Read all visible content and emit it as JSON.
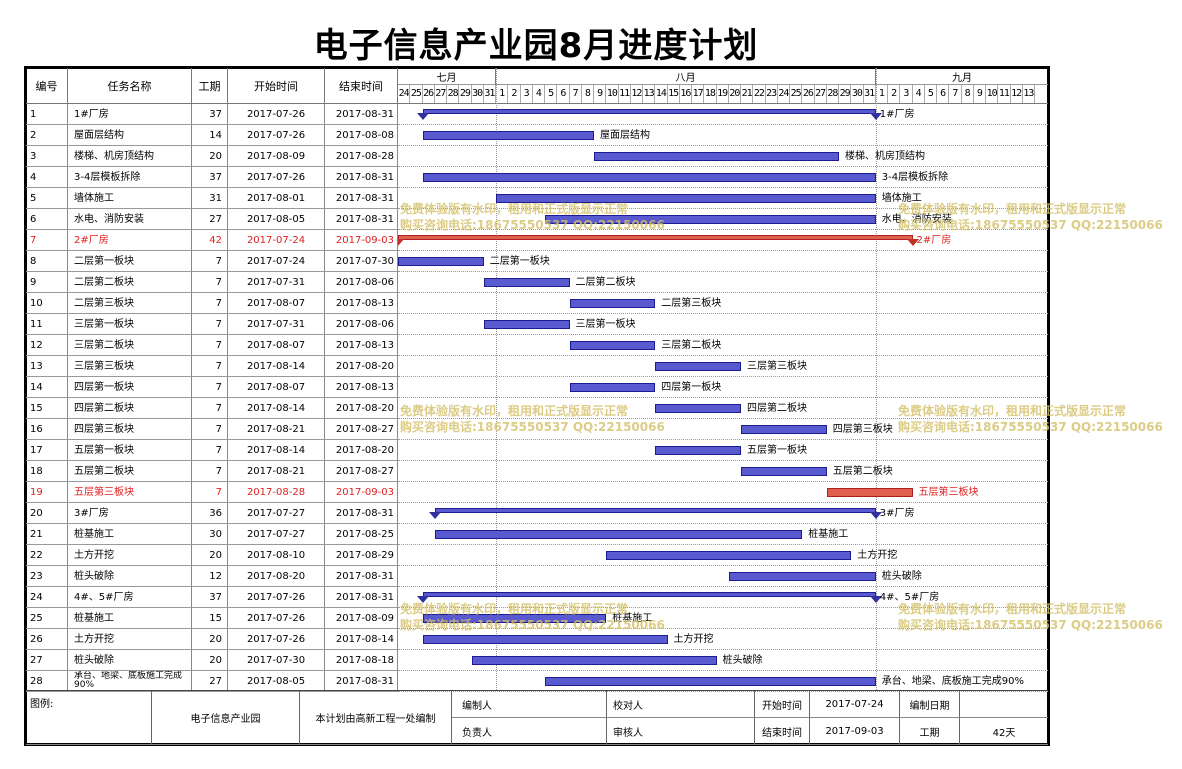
{
  "title": "电子信息产业园8月进度计划",
  "header": {
    "col_id": "编号",
    "col_name": "任务名称",
    "col_duration": "工期",
    "col_start": "开始时间",
    "col_end": "结束时间",
    "months": [
      "七月",
      "八月",
      "九月"
    ],
    "days_july": [
      "24",
      "25",
      "26",
      "27",
      "28",
      "29",
      "30",
      "31"
    ],
    "days_aug": [
      "1",
      "2",
      "3",
      "4",
      "5",
      "6",
      "7",
      "8",
      "9",
      "10",
      "11",
      "12",
      "13",
      "14",
      "15",
      "16",
      "17",
      "18",
      "19",
      "20",
      "21",
      "22",
      "23",
      "24",
      "25",
      "26",
      "27",
      "28",
      "29",
      "30",
      "31"
    ],
    "days_sep": [
      "1",
      "2",
      "3",
      "4",
      "5",
      "6",
      "7",
      "8",
      "9",
      "10",
      "11",
      "12",
      "13"
    ]
  },
  "tasks": [
    {
      "id": "1",
      "name": "1#厂房",
      "duration": "37",
      "start": "2017-07-26",
      "end": "2017-08-31",
      "label": "1#厂房",
      "summary": true,
      "red": false
    },
    {
      "id": "2",
      "name": "屋面层结构",
      "duration": "14",
      "start": "2017-07-26",
      "end": "2017-08-08",
      "label": "屋面层结构",
      "summary": false,
      "red": false
    },
    {
      "id": "3",
      "name": "楼梯、机房顶结构",
      "duration": "20",
      "start": "2017-08-09",
      "end": "2017-08-28",
      "label": "楼梯、机房顶结构",
      "summary": false,
      "red": false
    },
    {
      "id": "4",
      "name": "3-4层模板拆除",
      "duration": "37",
      "start": "2017-07-26",
      "end": "2017-08-31",
      "label": "3-4层模板拆除",
      "summary": false,
      "red": false
    },
    {
      "id": "5",
      "name": "墙体施工",
      "duration": "31",
      "start": "2017-08-01",
      "end": "2017-08-31",
      "label": "墙体施工",
      "summary": false,
      "red": false
    },
    {
      "id": "6",
      "name": "水电、消防安装",
      "duration": "27",
      "start": "2017-08-05",
      "end": "2017-08-31",
      "label": "水电、消防安装",
      "summary": false,
      "red": false
    },
    {
      "id": "7",
      "name": "2#厂房",
      "duration": "42",
      "start": "2017-07-24",
      "end": "2017-09-03",
      "label": "2#厂房",
      "summary": true,
      "red": true
    },
    {
      "id": "8",
      "name": "二层第一板块",
      "duration": "7",
      "start": "2017-07-24",
      "end": "2017-07-30",
      "label": "二层第一板块",
      "summary": false,
      "red": false
    },
    {
      "id": "9",
      "name": "二层第二板块",
      "duration": "7",
      "start": "2017-07-31",
      "end": "2017-08-06",
      "label": "二层第二板块",
      "summary": false,
      "red": false
    },
    {
      "id": "10",
      "name": "二层第三板块",
      "duration": "7",
      "start": "2017-08-07",
      "end": "2017-08-13",
      "label": "二层第三板块",
      "summary": false,
      "red": false
    },
    {
      "id": "11",
      "name": "三层第一板块",
      "duration": "7",
      "start": "2017-07-31",
      "end": "2017-08-06",
      "label": "三层第一板块",
      "summary": false,
      "red": false
    },
    {
      "id": "12",
      "name": "三层第二板块",
      "duration": "7",
      "start": "2017-08-07",
      "end": "2017-08-13",
      "label": "三层第二板块",
      "summary": false,
      "red": false
    },
    {
      "id": "13",
      "name": "三层第三板块",
      "duration": "7",
      "start": "2017-08-14",
      "end": "2017-08-20",
      "label": "三层第三板块",
      "summary": false,
      "red": false
    },
    {
      "id": "14",
      "name": "四层第一板块",
      "duration": "7",
      "start": "2017-08-07",
      "end": "2017-08-13",
      "label": "四层第一板块",
      "summary": false,
      "red": false
    },
    {
      "id": "15",
      "name": "四层第二板块",
      "duration": "7",
      "start": "2017-08-14",
      "end": "2017-08-20",
      "label": "四层第二板块",
      "summary": false,
      "red": false
    },
    {
      "id": "16",
      "name": "四层第三板块",
      "duration": "7",
      "start": "2017-08-21",
      "end": "2017-08-27",
      "label": "四层第三板块",
      "summary": false,
      "red": false
    },
    {
      "id": "17",
      "name": "五层第一板块",
      "duration": "7",
      "start": "2017-08-14",
      "end": "2017-08-20",
      "label": "五层第一板块",
      "summary": false,
      "red": false
    },
    {
      "id": "18",
      "name": "五层第二板块",
      "duration": "7",
      "start": "2017-08-21",
      "end": "2017-08-27",
      "label": "五层第二板块",
      "summary": false,
      "red": false
    },
    {
      "id": "19",
      "name": "五层第三板块",
      "duration": "7",
      "start": "2017-08-28",
      "end": "2017-09-03",
      "label": "五层第三板块",
      "summary": false,
      "red": true
    },
    {
      "id": "20",
      "name": "3#厂房",
      "duration": "36",
      "start": "2017-07-27",
      "end": "2017-08-31",
      "label": "3#厂房",
      "summary": true,
      "red": false
    },
    {
      "id": "21",
      "name": "桩基施工",
      "duration": "30",
      "start": "2017-07-27",
      "end": "2017-08-25",
      "label": "桩基施工",
      "summary": false,
      "red": false
    },
    {
      "id": "22",
      "name": "土方开挖",
      "duration": "20",
      "start": "2017-08-10",
      "end": "2017-08-29",
      "label": "土方开挖",
      "summary": false,
      "red": false
    },
    {
      "id": "23",
      "name": "桩头破除",
      "duration": "12",
      "start": "2017-08-20",
      "end": "2017-08-31",
      "label": "桩头破除",
      "summary": false,
      "red": false
    },
    {
      "id": "24",
      "name": "4#、5#厂房",
      "duration": "37",
      "start": "2017-07-26",
      "end": "2017-08-31",
      "label": "4#、5#厂房",
      "summary": true,
      "red": false
    },
    {
      "id": "25",
      "name": "桩基施工",
      "duration": "15",
      "start": "2017-07-26",
      "end": "2017-08-09",
      "label": "桩基施工",
      "summary": false,
      "red": false
    },
    {
      "id": "26",
      "name": "土方开挖",
      "duration": "20",
      "start": "2017-07-26",
      "end": "2017-08-14",
      "label": "土方开挖",
      "summary": false,
      "red": false
    },
    {
      "id": "27",
      "name": "桩头破除",
      "duration": "20",
      "start": "2017-07-30",
      "end": "2017-08-18",
      "label": "桩头破除",
      "summary": false,
      "red": false
    },
    {
      "id": "28",
      "name": "承台、地梁、底板施工完成90%",
      "duration": "27",
      "start": "2017-08-05",
      "end": "2017-08-31",
      "label": "承台、地梁、底板施工完成90%",
      "summary": false,
      "red": false
    }
  ],
  "footer": {
    "legend_label": "图例:",
    "project": "电子信息产业园",
    "note": "本计划由高新工程一处编制",
    "compiler_label": "编制人",
    "checker_label": "校对人",
    "start_label": "开始时间",
    "start_value": "2017-07-24",
    "date_label": "编制日期",
    "responsible_label": "负责人",
    "reviewer_label": "审核人",
    "end_label": "结束时间",
    "end_value": "2017-09-03",
    "duration_label": "工期",
    "duration_value": "42天"
  },
  "watermark": {
    "line1": "免费体验版有水印，租用和正式版显示正常",
    "line2": "购买咨询电话:18675550537 QQ:22150066"
  },
  "colors": {
    "bar": "#5a5ad0",
    "bar_border": "#1c1c90",
    "red_bar": "#e06050",
    "red_text": "#e02020",
    "watermark": "#d4c068"
  }
}
